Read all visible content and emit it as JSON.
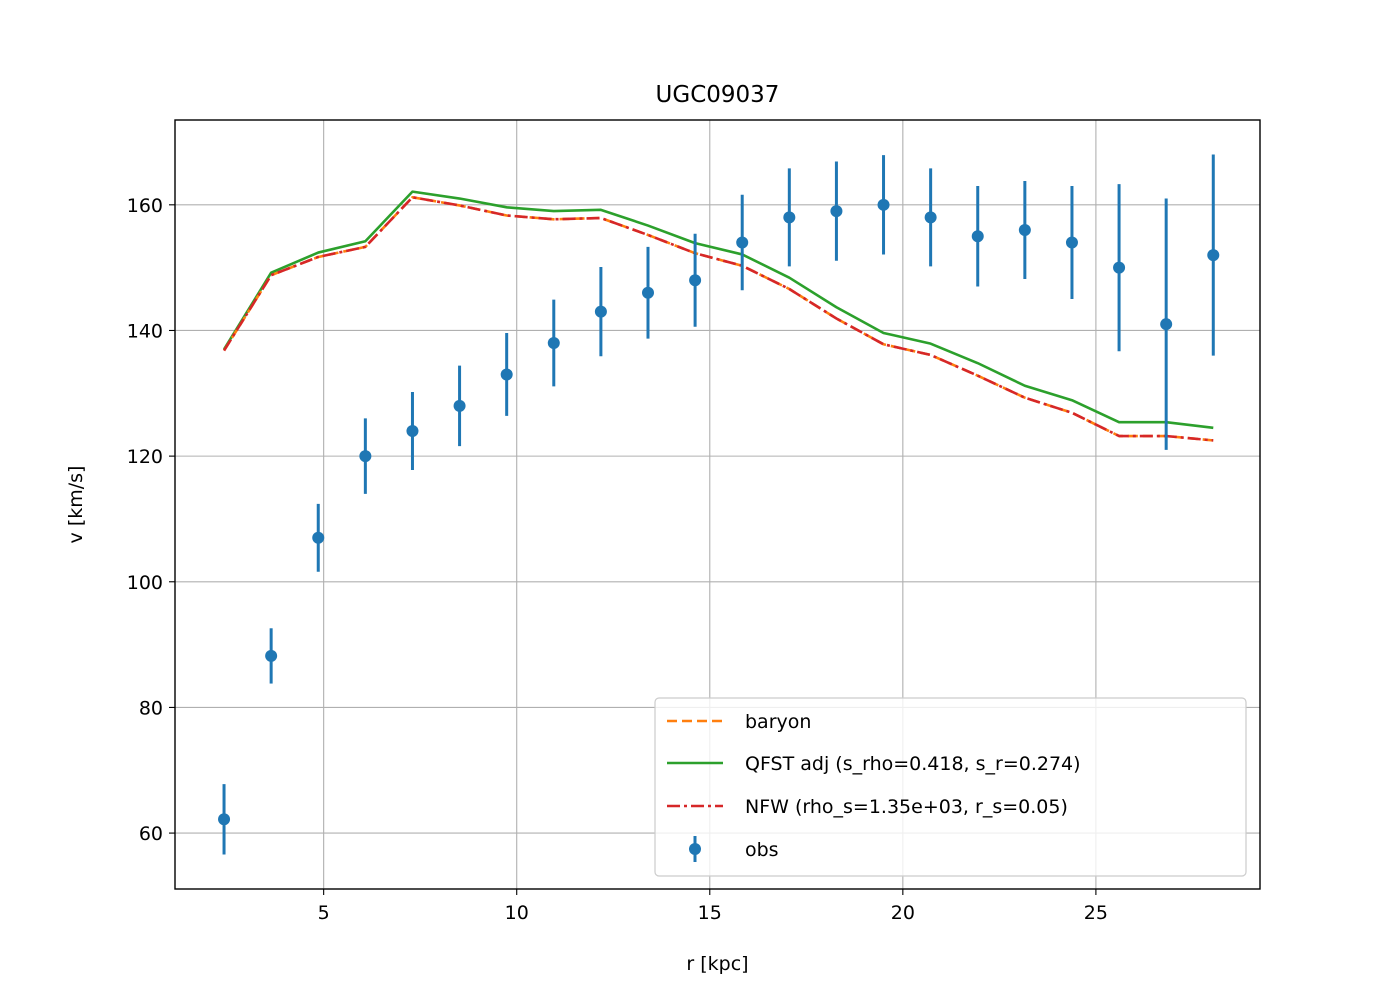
{
  "chart_data": {
    "type": "line",
    "title": "UGC09037",
    "xlabel": "r [kpc]",
    "ylabel": "v [km/s]",
    "xlim": [
      1.15,
      29.25
    ],
    "ylim": [
      51.1,
      173.5
    ],
    "xticks": [
      5,
      10,
      15,
      20,
      25
    ],
    "yticks": [
      60,
      80,
      100,
      120,
      140,
      160
    ],
    "grid": true,
    "legend_position": "lower right",
    "x": [
      2.42,
      3.64,
      4.86,
      6.08,
      7.3,
      8.52,
      9.74,
      10.96,
      12.18,
      13.4,
      14.62,
      15.84,
      17.06,
      18.28,
      19.5,
      20.72,
      21.94,
      23.16,
      24.38,
      25.6,
      26.82,
      28.04
    ],
    "series": [
      {
        "name": "baryon",
        "kind": "line",
        "style": "dashed",
        "color": "#ff7f0e",
        "values": [
          136.8,
          148.8,
          151.7,
          153.3,
          161.2,
          159.9,
          158.3,
          157.7,
          157.9,
          155.2,
          152.3,
          150.3,
          146.6,
          141.9,
          137.8,
          136.1,
          132.8,
          129.3,
          126.9,
          123.2,
          123.2,
          122.5
        ]
      },
      {
        "name": "QFST adj (s_rho=0.418, s_r=0.274)",
        "kind": "line",
        "style": "solid",
        "color": "#2ca02c",
        "values": [
          137.0,
          149.2,
          152.4,
          154.2,
          162.1,
          161.0,
          159.6,
          159.0,
          159.2,
          156.7,
          153.9,
          152.1,
          148.4,
          143.7,
          139.6,
          137.9,
          134.8,
          131.2,
          128.9,
          125.4,
          125.4,
          124.5
        ]
      },
      {
        "name": "NFW (rho_s=1.35e+03, r_s=0.05)",
        "kind": "line",
        "style": "dashdot",
        "color": "#d62728",
        "values": [
          136.8,
          148.8,
          151.7,
          153.3,
          161.2,
          159.9,
          158.3,
          157.7,
          157.9,
          155.2,
          152.3,
          150.3,
          146.6,
          141.9,
          137.8,
          136.1,
          132.8,
          129.3,
          126.9,
          123.2,
          123.2,
          122.5
        ]
      },
      {
        "name": "obs",
        "kind": "errorbar",
        "color": "#1f77b4",
        "values": [
          62.2,
          88.2,
          107.0,
          120.0,
          124.0,
          128.0,
          133.0,
          138.0,
          143.0,
          146.0,
          148.0,
          154.0,
          158.0,
          159.0,
          160.0,
          158.0,
          155.0,
          156.0,
          154.0,
          150.0,
          141.0,
          152.0
        ],
        "errors": [
          5.6,
          4.4,
          5.4,
          6.0,
          6.2,
          6.4,
          6.6,
          6.9,
          7.1,
          7.3,
          7.4,
          7.6,
          7.8,
          7.9,
          7.9,
          7.8,
          8.0,
          7.8,
          9.0,
          13.3,
          20.0,
          16.0
        ]
      }
    ]
  }
}
